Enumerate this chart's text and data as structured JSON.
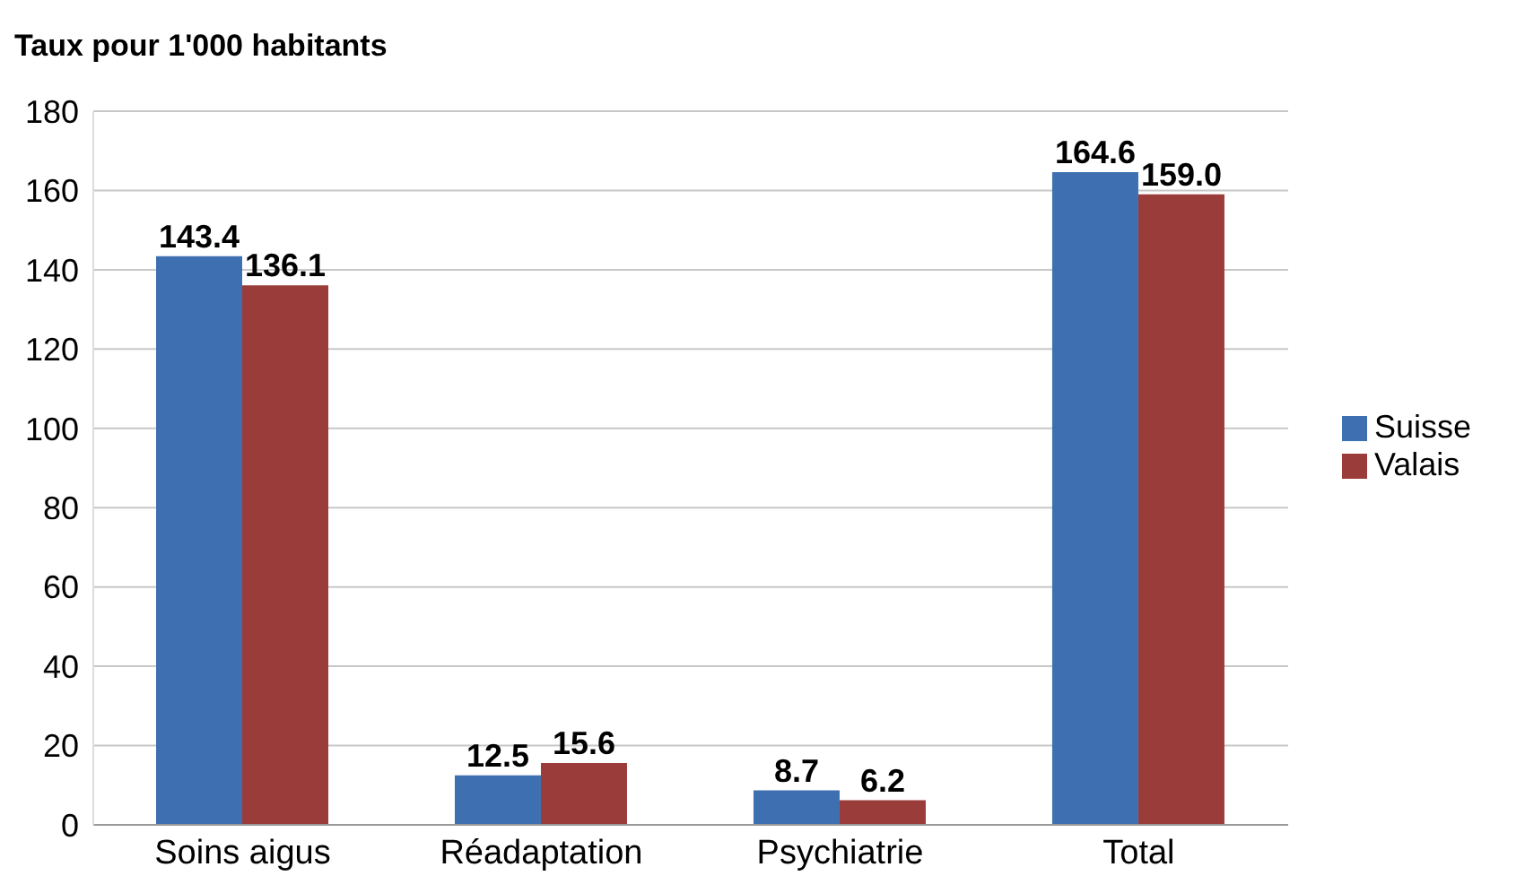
{
  "chart_data": {
    "type": "bar",
    "title": "Taux pour 1'000 habitants",
    "categories": [
      "Soins aigus",
      "Réadaptation",
      "Psychiatrie",
      "Total"
    ],
    "series": [
      {
        "name": "Suisse",
        "color": "#3e6fb0",
        "values": [
          143.4,
          12.5,
          8.7,
          164.6
        ],
        "value_labels": [
          "143.4",
          "12.5",
          "8.7",
          "164.6"
        ]
      },
      {
        "name": "Valais",
        "color": "#9a3d3a",
        "values": [
          136.1,
          15.6,
          6.2,
          159.0
        ],
        "value_labels": [
          "136.1",
          "15.6",
          "6.2",
          "159.0"
        ]
      }
    ],
    "ylim": [
      0,
      180
    ],
    "yticks": [
      0,
      20,
      40,
      60,
      80,
      100,
      120,
      140,
      160,
      180
    ],
    "grid": "y",
    "legend": "right"
  }
}
